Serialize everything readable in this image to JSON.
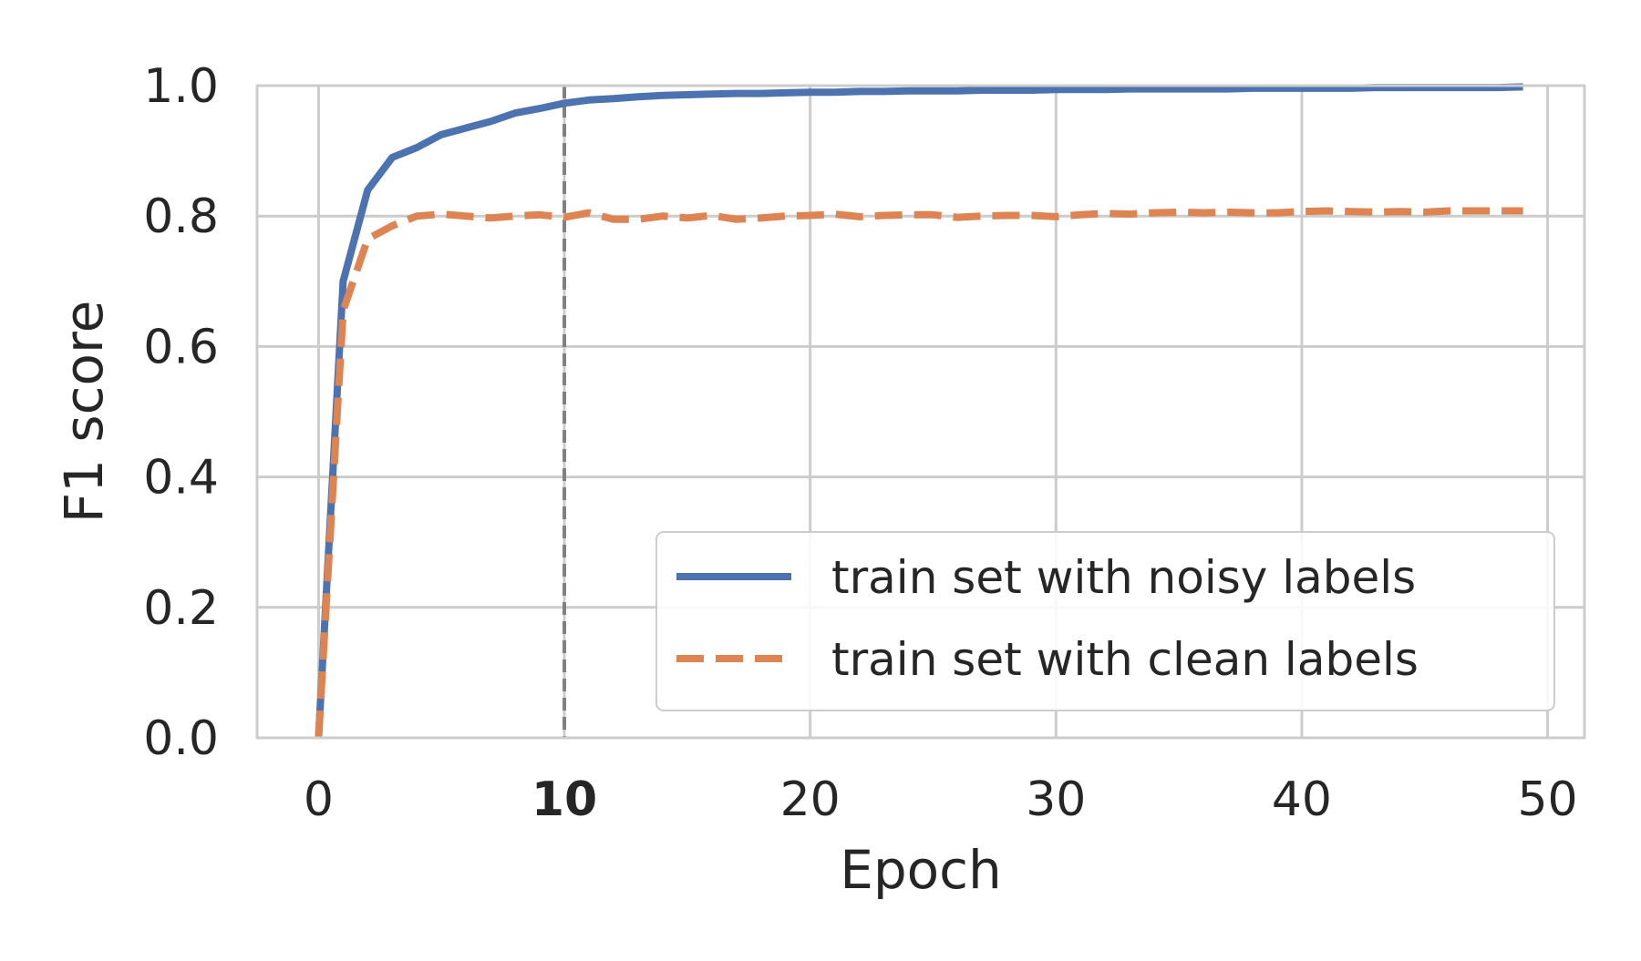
{
  "chart_data": {
    "type": "line",
    "title": "",
    "xlabel": "Epoch",
    "ylabel": "F1 score",
    "xlim": [
      -2.5,
      51.5
    ],
    "ylim": [
      0.0,
      1.0
    ],
    "xticks": [
      0,
      10,
      20,
      30,
      40,
      50
    ],
    "xtick_labels": [
      "0",
      "10",
      "20",
      "30",
      "40",
      "50"
    ],
    "bold_xtick": "10",
    "yticks": [
      0.0,
      0.2,
      0.4,
      0.6,
      0.8,
      1.0
    ],
    "ytick_labels": [
      "0.0",
      "0.2",
      "0.4",
      "0.6",
      "0.8",
      "1.0"
    ],
    "grid": true,
    "legend_position": "lower-right",
    "vertical_marker": {
      "x": 10,
      "color": "#808080",
      "style": "dashed"
    },
    "x": [
      0,
      1,
      2,
      3,
      4,
      5,
      6,
      7,
      8,
      9,
      10,
      11,
      12,
      13,
      14,
      15,
      16,
      17,
      18,
      19,
      20,
      21,
      22,
      23,
      24,
      25,
      26,
      27,
      28,
      29,
      30,
      31,
      32,
      33,
      34,
      35,
      36,
      37,
      38,
      39,
      40,
      41,
      42,
      43,
      44,
      45,
      46,
      47,
      48,
      49
    ],
    "series": [
      {
        "name": "train set with noisy labels",
        "color": "#4C72B0",
        "style": "solid",
        "values": [
          0.0,
          0.7,
          0.84,
          0.89,
          0.905,
          0.925,
          0.935,
          0.945,
          0.958,
          0.965,
          0.973,
          0.978,
          0.98,
          0.983,
          0.985,
          0.986,
          0.987,
          0.988,
          0.988,
          0.989,
          0.99,
          0.99,
          0.991,
          0.991,
          0.992,
          0.992,
          0.992,
          0.993,
          0.993,
          0.993,
          0.994,
          0.994,
          0.994,
          0.995,
          0.995,
          0.995,
          0.995,
          0.995,
          0.996,
          0.996,
          0.996,
          0.996,
          0.996,
          0.997,
          0.997,
          0.997,
          0.997,
          0.997,
          0.997,
          0.998
        ]
      },
      {
        "name": "train set with clean labels",
        "color": "#DD8452",
        "style": "dashed",
        "values": [
          0.0,
          0.655,
          0.765,
          0.785,
          0.8,
          0.803,
          0.8,
          0.797,
          0.8,
          0.802,
          0.798,
          0.805,
          0.795,
          0.795,
          0.8,
          0.797,
          0.801,
          0.795,
          0.797,
          0.8,
          0.801,
          0.803,
          0.799,
          0.801,
          0.802,
          0.802,
          0.798,
          0.8,
          0.801,
          0.801,
          0.799,
          0.802,
          0.804,
          0.803,
          0.805,
          0.806,
          0.805,
          0.806,
          0.805,
          0.805,
          0.807,
          0.808,
          0.807,
          0.806,
          0.807,
          0.806,
          0.808,
          0.808,
          0.808,
          0.808
        ]
      }
    ]
  }
}
